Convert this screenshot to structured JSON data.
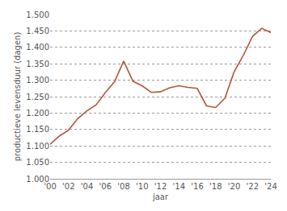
{
  "chart_data": {
    "type": "line",
    "x_label": "jaar",
    "y_label": "productieve levensduur (dagen)",
    "x": [
      2000,
      2001,
      2002,
      2003,
      2004,
      2005,
      2006,
      2007,
      2008,
      2009,
      2010,
      2011,
      2012,
      2013,
      2014,
      2015,
      2016,
      2017,
      2018,
      2019,
      2020,
      2021,
      2022,
      2023,
      2024
    ],
    "values": [
      1105,
      1130,
      1148,
      1183,
      1207,
      1225,
      1262,
      1295,
      1358,
      1297,
      1283,
      1263,
      1265,
      1277,
      1283,
      1278,
      1275,
      1222,
      1217,
      1245,
      1325,
      1375,
      1433,
      1458,
      1445
    ],
    "color": "#b3573b",
    "xlim": [
      2000,
      2024
    ],
    "xticks": [
      {
        "value": 2000,
        "label": "'00"
      },
      {
        "value": 2002,
        "label": "'02"
      },
      {
        "value": 2004,
        "label": "'04"
      },
      {
        "value": 2006,
        "label": "'06"
      },
      {
        "value": 2008,
        "label": "'08"
      },
      {
        "value": 2010,
        "label": "'10"
      },
      {
        "value": 2012,
        "label": "'12"
      },
      {
        "value": 2014,
        "label": "'14"
      },
      {
        "value": 2016,
        "label": "'16"
      },
      {
        "value": 2018,
        "label": "'18"
      },
      {
        "value": 2020,
        "label": "'20"
      },
      {
        "value": 2022,
        "label": "'22"
      },
      {
        "value": 2024,
        "label": "'24"
      }
    ],
    "ylim": [
      1000,
      1500
    ],
    "yticks": [
      {
        "value": 1000,
        "label": "1.000"
      },
      {
        "value": 1050,
        "label": "1.050"
      },
      {
        "value": 1100,
        "label": "1.100"
      },
      {
        "value": 1150,
        "label": "1.150"
      },
      {
        "value": 1200,
        "label": "1.200"
      },
      {
        "value": 1250,
        "label": "1.250"
      },
      {
        "value": 1300,
        "label": "1.300"
      },
      {
        "value": 1350,
        "label": "1.350"
      },
      {
        "value": 1400,
        "label": "1.400"
      },
      {
        "value": 1450,
        "label": "1.450"
      },
      {
        "value": 1500,
        "label": "1.500"
      }
    ],
    "grid": true
  }
}
